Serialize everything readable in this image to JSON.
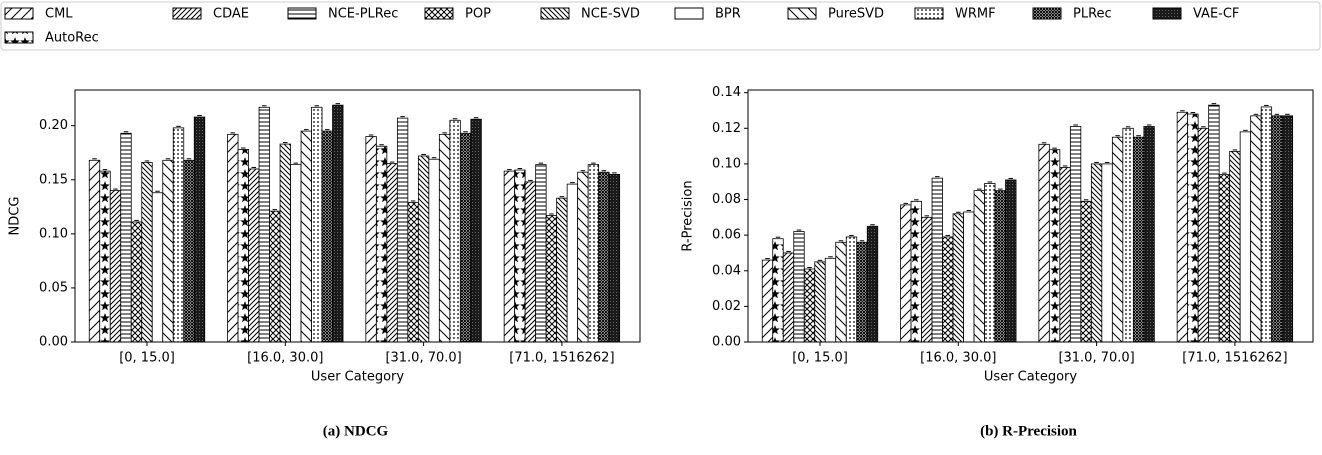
{
  "chart_data": [
    {
      "type": "bar",
      "title": "(a) NDCG",
      "x_label": "User Category",
      "y_label": "NDCG",
      "categories": [
        "[0, 15.0]",
        "[16.0, 30.0]",
        "[31.0, 70.0]",
        "[71.0, 1516262]"
      ],
      "ylim": [
        0,
        0.233
      ],
      "yticks": [
        {
          "value": 0,
          "label": "0.00"
        },
        {
          "value": 0.05,
          "label": "0.05"
        },
        {
          "value": 0.1,
          "label": "0.10"
        },
        {
          "value": 0.15,
          "label": "0.15"
        },
        {
          "value": 0.2,
          "label": "0.20"
        }
      ],
      "series": [
        {
          "name": "CML",
          "hatch": "/",
          "color": "#ffffff",
          "values": [
            0.168,
            0.192,
            0.19,
            0.158
          ]
        },
        {
          "name": "AutoRec",
          "hatch": "*",
          "color": "#ffffff",
          "values": [
            0.158,
            0.178,
            0.181,
            0.159
          ]
        },
        {
          "name": "CDAE",
          "hatch": "//",
          "color": "#ffffff",
          "values": [
            0.14,
            0.16,
            0.165,
            0.148
          ]
        },
        {
          "name": "NCE-PLRec",
          "hatch": "-",
          "color": "#ffffff",
          "values": [
            0.193,
            0.217,
            0.207,
            0.164
          ]
        },
        {
          "name": "POP",
          "hatch": "xxx",
          "color": "#ffffff",
          "values": [
            0.111,
            0.121,
            0.129,
            0.117
          ]
        },
        {
          "name": "NCE-SVD",
          "hatch": "\\\\",
          "color": "#ffffff",
          "values": [
            0.166,
            0.183,
            0.172,
            0.133
          ]
        },
        {
          "name": "BPR",
          "hatch": "",
          "color": "#ffffff",
          "values": [
            0.138,
            0.164,
            0.169,
            0.146
          ]
        },
        {
          "name": "PureSVD",
          "hatch": "\\",
          "color": "#ffffff",
          "values": [
            0.168,
            0.195,
            0.192,
            0.157
          ]
        },
        {
          "name": "WRMF",
          "hatch": "...",
          "color": "#ffffff",
          "values": [
            0.198,
            0.217,
            0.205,
            0.164
          ]
        },
        {
          "name": "PLRec",
          "hatch": "xxxx",
          "color": "#ffffff",
          "values": [
            0.168,
            0.195,
            0.193,
            0.157
          ]
        },
        {
          "name": "VAE-CF",
          "hatch": "oooo",
          "color": "#1a1a1a",
          "values": [
            0.208,
            0.219,
            0.206,
            0.155
          ]
        }
      ]
    },
    {
      "type": "bar",
      "title": "(b) R-Precision",
      "x_label": "User Category",
      "y_label": "R-Precision",
      "categories": [
        "[0, 15.0]",
        "[16.0, 30.0]",
        "[31.0, 70.0]",
        "[71.0, 1516262]"
      ],
      "ylim": [
        0,
        0.1415
      ],
      "yticks": [
        {
          "value": 0,
          "label": "0.00"
        },
        {
          "value": 0.02,
          "label": "0.02"
        },
        {
          "value": 0.04,
          "label": "0.04"
        },
        {
          "value": 0.06,
          "label": "0.06"
        },
        {
          "value": 0.08,
          "label": "0.08"
        },
        {
          "value": 0.1,
          "label": "0.10"
        },
        {
          "value": 0.12,
          "label": "0.12"
        },
        {
          "value": 0.14,
          "label": "0.14"
        }
      ],
      "series": [
        {
          "values": [
            0.046,
            0.077,
            0.111,
            0.129
          ]
        },
        {
          "values": [
            0.058,
            0.079,
            0.108,
            0.128
          ]
        },
        {
          "values": [
            0.05,
            0.07,
            0.098,
            0.12
          ]
        },
        {
          "values": [
            0.062,
            0.092,
            0.121,
            0.133
          ]
        },
        {
          "values": [
            0.041,
            0.059,
            0.079,
            0.094
          ]
        },
        {
          "values": [
            0.045,
            0.072,
            0.1,
            0.107
          ]
        },
        {
          "values": [
            0.047,
            0.073,
            0.1,
            0.118
          ]
        },
        {
          "values": [
            0.056,
            0.085,
            0.115,
            0.127
          ]
        },
        {
          "values": [
            0.059,
            0.089,
            0.12,
            0.132
          ]
        },
        {
          "values": [
            0.056,
            0.085,
            0.115,
            0.127
          ]
        },
        {
          "values": [
            0.065,
            0.091,
            0.121,
            0.127
          ]
        }
      ]
    }
  ]
}
